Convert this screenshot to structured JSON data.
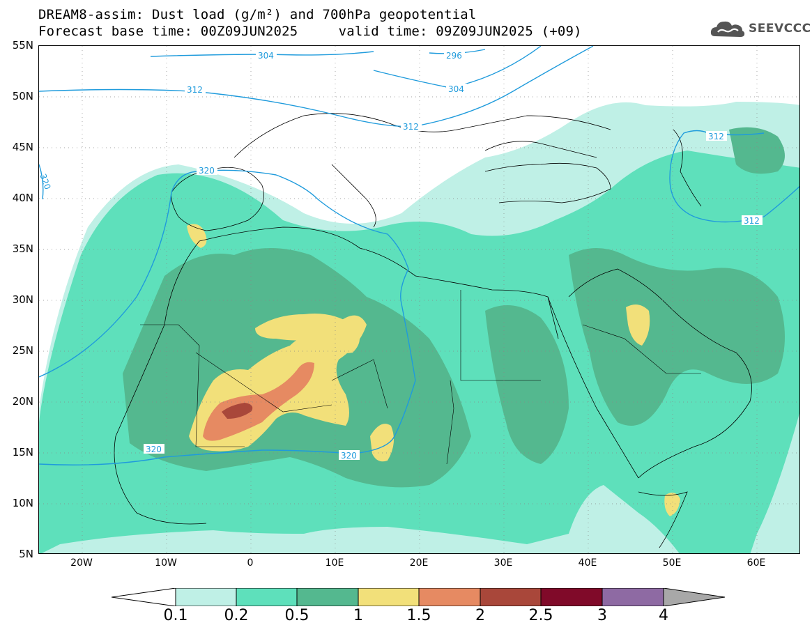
{
  "title": {
    "line1": "DREAM8-assim: Dust load (g/m²) and 700hPa geopotential",
    "line2": "Forecast base time: 00Z09JUN2025     valid time: 09Z09JUN2025 (+09)"
  },
  "logo": {
    "text": "SEEVCCC",
    "icon": "cloud-logo-icon"
  },
  "axes": {
    "lat_labels": [
      "55N",
      "50N",
      "45N",
      "40N",
      "35N",
      "30N",
      "25N",
      "20N",
      "15N",
      "10N",
      "5N"
    ],
    "lon_labels": [
      "20W",
      "10W",
      "0",
      "10E",
      "20E",
      "30E",
      "40E",
      "50E",
      "60E"
    ],
    "lat_range": [
      5,
      55
    ],
    "lon_range": [
      -25,
      65
    ],
    "grid": "dotted"
  },
  "contours": {
    "variable": "700hPa geopotential",
    "color": "#1f9bdc",
    "labels": [
      "304",
      "296",
      "312",
      "304",
      "312",
      "320",
      "312",
      "312",
      "320",
      "320",
      "320"
    ]
  },
  "colorbar": {
    "labels": [
      "0.1",
      "0.2",
      "0.5",
      "1",
      "1.5",
      "2",
      "2.5",
      "3",
      "4"
    ],
    "colors": [
      "#ffffff",
      "#bff0e6",
      "#5ee0bb",
      "#54b88f",
      "#f2e07a",
      "#e68a62",
      "#a9473a",
      "#800a29",
      "#8e6aa3",
      "#a8a8a8"
    ]
  },
  "dust_levels": {
    "light": "#bff0e6",
    "low": "#5ee0bb",
    "mid": "#54b88f",
    "yellow": "#f2e07a",
    "orange": "#e68a62",
    "brown": "#a9473a"
  }
}
